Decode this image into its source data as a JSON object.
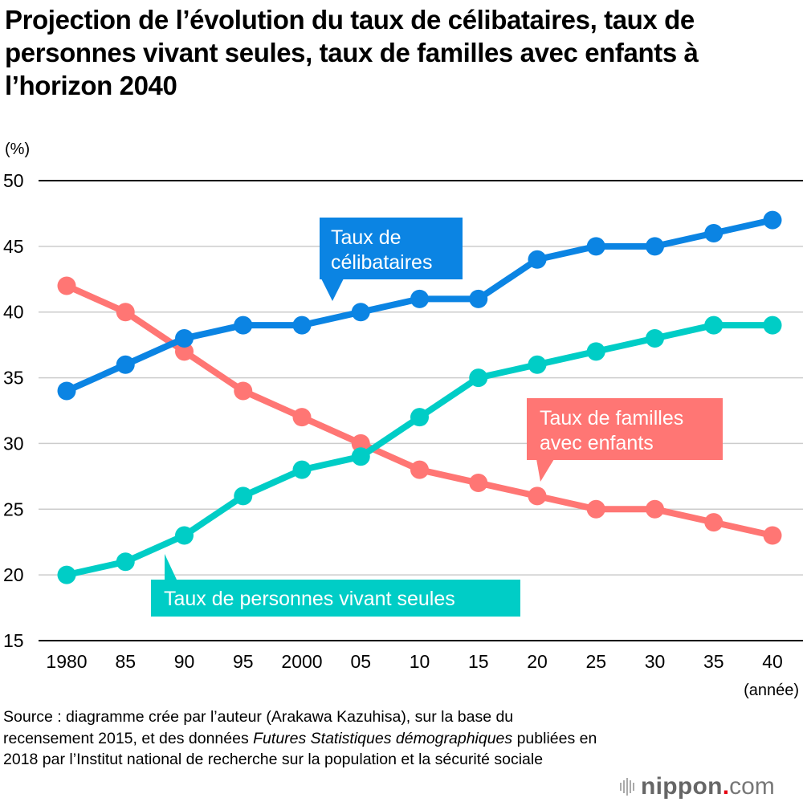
{
  "chart_data": {
    "type": "line",
    "title": "Projection de l’évolution du taux de célibataires, taux de personnes vivant seules, taux de familles avec enfants à l’horizon 2040",
    "ylabel": "(%)",
    "xlabel": "(année)",
    "ylim": [
      15,
      50
    ],
    "yticks": [
      "15",
      "20",
      "25",
      "30",
      "35",
      "40",
      "45",
      "50"
    ],
    "grid": true,
    "categories": [
      "1980",
      "85",
      "90",
      "95",
      "2000",
      "05",
      "10",
      "15",
      "20",
      "25",
      "30",
      "35",
      "40"
    ],
    "x": [
      1980,
      1985,
      1990,
      1995,
      2000,
      2005,
      2010,
      2015,
      2020,
      2025,
      2030,
      2035,
      2040
    ],
    "series": [
      {
        "name": "Taux de familles avec enfants",
        "label": "Taux de familles avec enfants",
        "color": "#ff7674",
        "values": [
          42,
          40,
          37,
          34,
          32,
          30,
          28,
          27,
          26,
          25,
          25,
          24,
          23
        ]
      },
      {
        "name": "Taux de célibataires",
        "label": "Taux de célibataires",
        "color": "#0b84e3",
        "values": [
          34,
          36,
          38,
          39,
          39,
          40,
          41,
          41,
          44,
          45,
          45,
          46,
          47
        ]
      },
      {
        "name": "Taux de personnes vivant seules",
        "label": "Taux de personnes vivant seules",
        "color": "#00cdc6",
        "values": [
          20,
          21,
          23,
          26,
          28,
          29,
          32,
          35,
          36,
          37,
          38,
          39,
          39
        ]
      }
    ],
    "legend": "callouts-inline"
  },
  "source": {
    "prefix": "Source : diagramme crée par l’auteur (Arakawa Kazuhisa), sur la base du recensement 2015, et des données ",
    "italic": "Futures Statistiques démographiques",
    "suffix": " publiées en 2018 par l’Institut national de recherche sur la population et la sécurité sociale"
  },
  "logo": {
    "name": "nippon",
    "dot": ".",
    "tld": "com"
  }
}
